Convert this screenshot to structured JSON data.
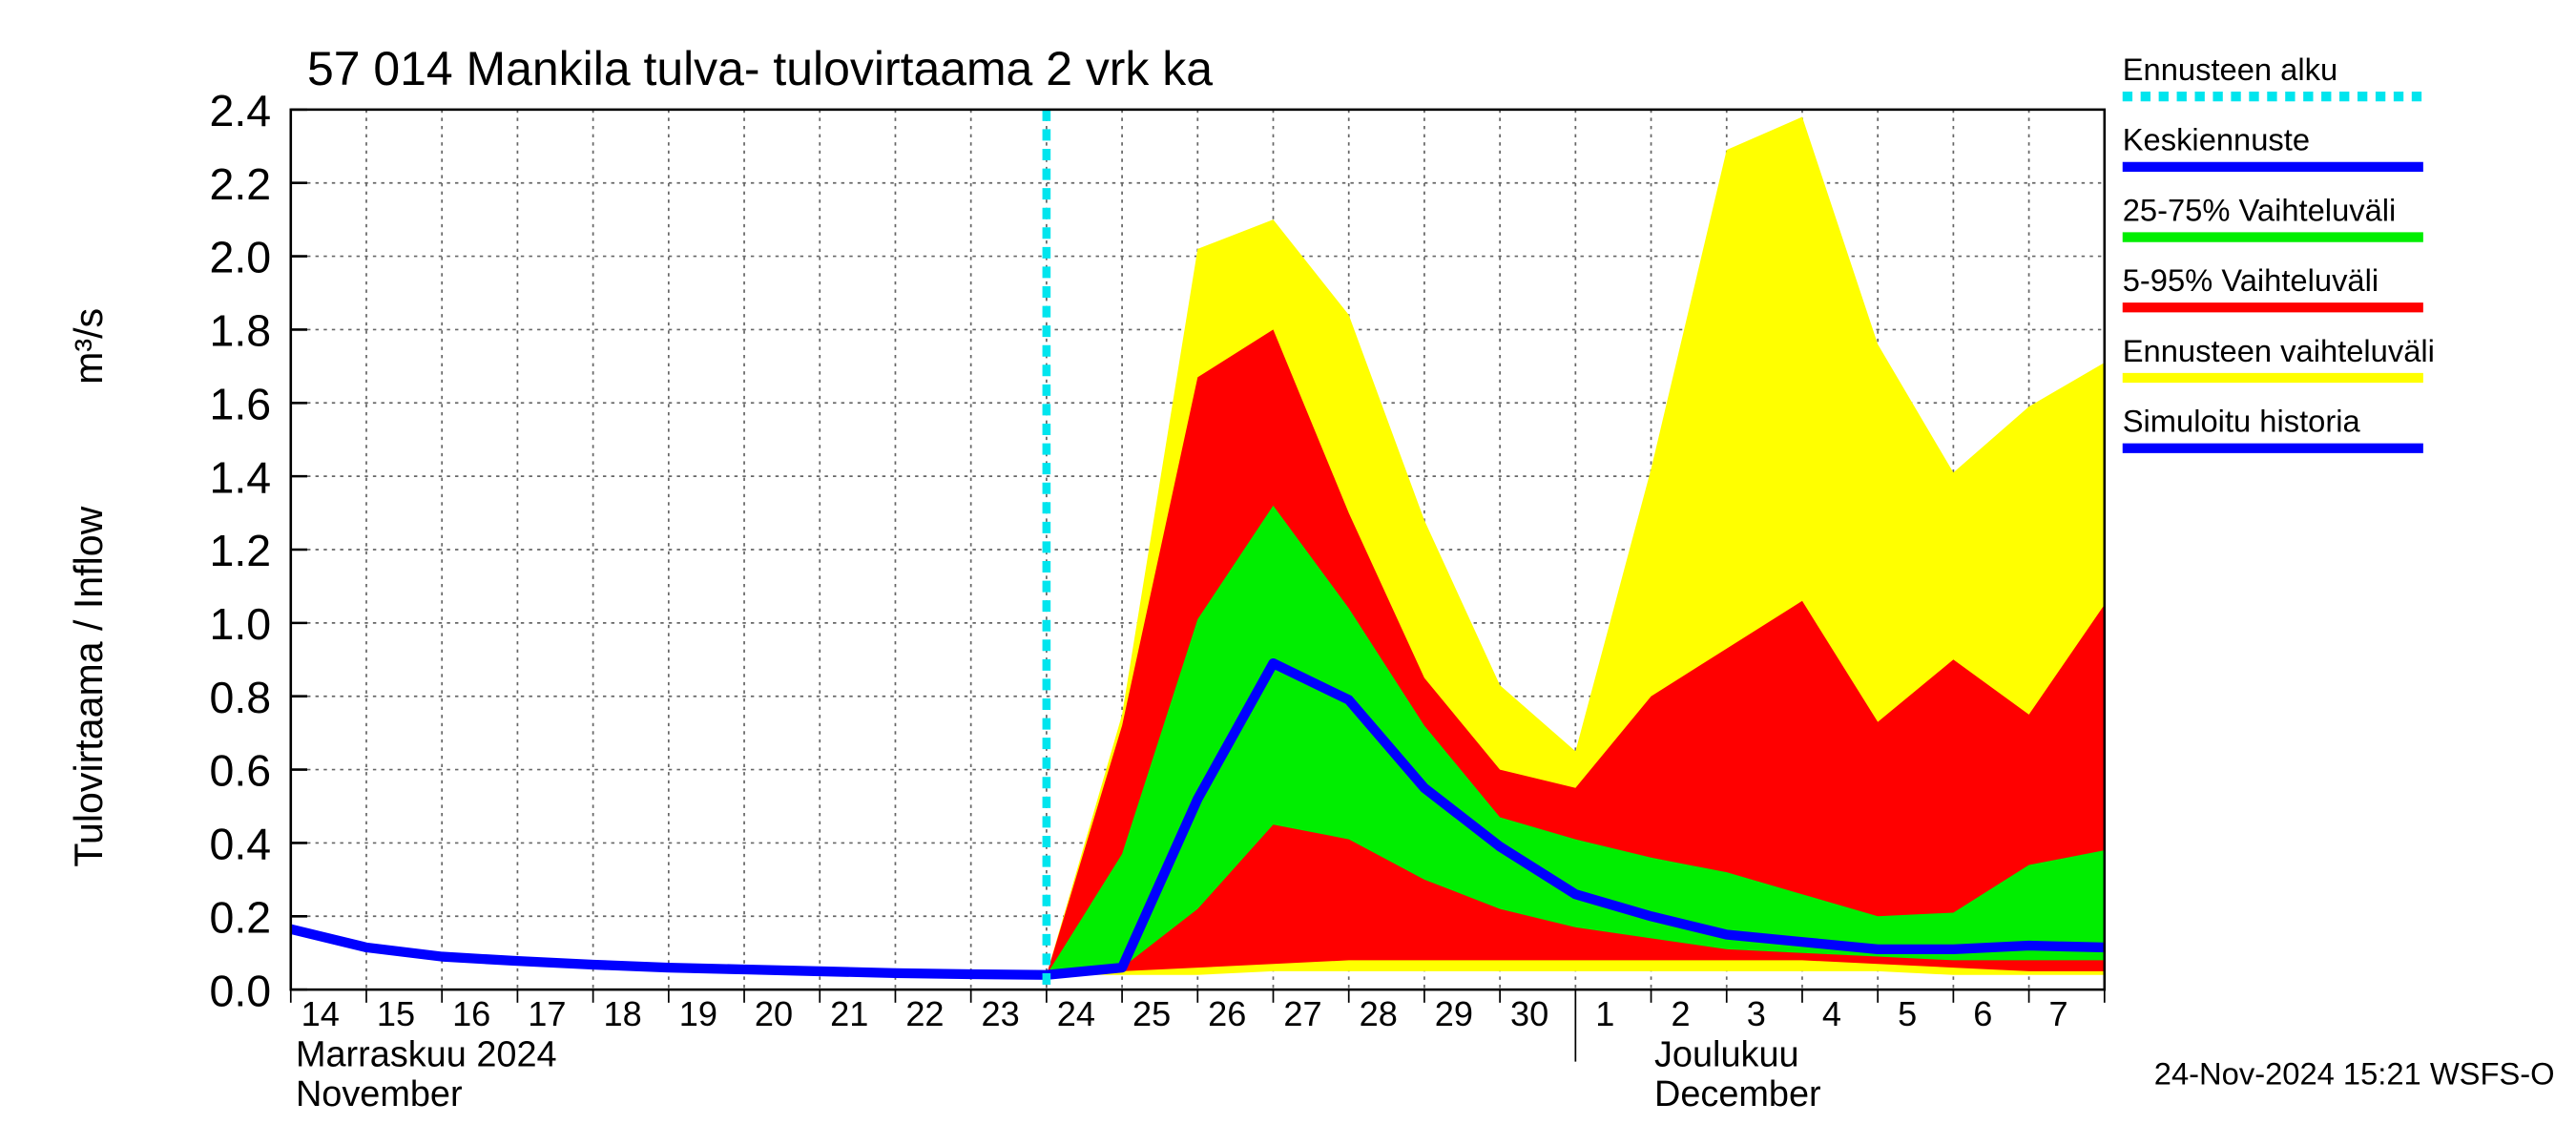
{
  "chart_data": {
    "type": "band-line",
    "title": "57 014 Mankila tulva- tulovirtaama 2 vrk ka",
    "y_label": "Tulovirtaama / Inflow",
    "y_unit": "m³/s",
    "months": [
      {
        "name": "Marraskuu 2024",
        "name_en": "November"
      },
      {
        "name": "Joulukuu",
        "name_en": "December"
      }
    ],
    "footer": "24-Nov-2024 15:21 WSFS-O",
    "categories": [
      "14",
      "15",
      "16",
      "17",
      "18",
      "19",
      "20",
      "21",
      "22",
      "23",
      "24",
      "25",
      "26",
      "27",
      "28",
      "29",
      "30",
      "1",
      "2",
      "3",
      "4",
      "5",
      "6",
      "7",
      null
    ],
    "ylim": [
      0,
      2.4
    ],
    "yticks": [
      {
        "value": 0,
        "label": "0.0"
      },
      {
        "value": 0.2,
        "label": "0.2"
      },
      {
        "value": 0.4,
        "label": "0.4"
      },
      {
        "value": 0.6,
        "label": "0.6"
      },
      {
        "value": 0.8,
        "label": "0.8"
      },
      {
        "value": 1.0,
        "label": "1.0"
      },
      {
        "value": 1.2,
        "label": "1.2"
      },
      {
        "value": 1.4,
        "label": "1.4"
      },
      {
        "value": 1.6,
        "label": "1.6"
      },
      {
        "value": 1.8,
        "label": "1.8"
      },
      {
        "value": 2.0,
        "label": "2.0"
      },
      {
        "value": 2.2,
        "label": "2.2"
      },
      {
        "value": 2.4,
        "label": "2.4"
      }
    ],
    "grid": true,
    "forecast_start": {
      "name": "Ennusteen alku",
      "color": "#00e5ee",
      "at": 10
    },
    "bands": [
      {
        "name": "Ennusteen vaihteluväli",
        "color": "#ffff00",
        "high": [
          null,
          null,
          null,
          null,
          null,
          null,
          null,
          null,
          null,
          null,
          0.04,
          0.75,
          2.02,
          2.1,
          1.84,
          1.28,
          0.83,
          0.65,
          1.42,
          2.29,
          2.38,
          1.76,
          1.41,
          1.59,
          1.71
        ],
        "low": [
          null,
          null,
          null,
          null,
          null,
          null,
          null,
          null,
          null,
          null,
          0.04,
          0.04,
          0.04,
          0.05,
          0.05,
          0.05,
          0.05,
          0.05,
          0.05,
          0.05,
          0.05,
          0.05,
          0.04,
          0.04,
          0.04
        ]
      },
      {
        "name": "5-95% Vaihteluväli",
        "color": "#ff0000",
        "high": [
          null,
          null,
          null,
          null,
          null,
          null,
          null,
          null,
          null,
          null,
          0.04,
          0.72,
          1.67,
          1.8,
          1.3,
          0.85,
          0.6,
          0.55,
          0.8,
          0.93,
          1.06,
          0.73,
          0.9,
          0.75,
          1.05
        ],
        "low": [
          null,
          null,
          null,
          null,
          null,
          null,
          null,
          null,
          null,
          null,
          0.04,
          0.05,
          0.06,
          0.07,
          0.08,
          0.08,
          0.08,
          0.08,
          0.08,
          0.08,
          0.08,
          0.07,
          0.06,
          0.05,
          0.05
        ]
      },
      {
        "name": "25-75% Vaihteluväli",
        "color": "#00ee00",
        "high": [
          null,
          null,
          null,
          null,
          null,
          null,
          null,
          null,
          null,
          null,
          0.04,
          0.37,
          1.01,
          1.32,
          1.04,
          0.72,
          0.47,
          0.41,
          0.36,
          0.32,
          0.26,
          0.2,
          0.21,
          0.34,
          0.38
        ],
        "low": [
          null,
          null,
          null,
          null,
          null,
          null,
          null,
          null,
          null,
          null,
          0.04,
          0.06,
          0.22,
          0.45,
          0.41,
          0.3,
          0.22,
          0.17,
          0.14,
          0.11,
          0.1,
          0.09,
          0.08,
          0.08,
          0.08
        ]
      }
    ],
    "series": [
      {
        "name": "Keskiennuste",
        "color": "#0000ff",
        "values": [
          null,
          null,
          null,
          null,
          null,
          null,
          null,
          null,
          null,
          null,
          0.04,
          0.06,
          0.52,
          0.89,
          0.79,
          0.55,
          0.39,
          0.26,
          0.2,
          0.15,
          0.13,
          0.11,
          0.11,
          0.12,
          0.115
        ]
      },
      {
        "name": "Simuloitu historia",
        "color": "#0000ff",
        "values": [
          0.165,
          0.115,
          0.09,
          0.078,
          0.068,
          0.06,
          0.055,
          0.05,
          0.045,
          0.042,
          0.04,
          null,
          null,
          null,
          null,
          null,
          null,
          null,
          null,
          null,
          null,
          null,
          null,
          null,
          null
        ]
      }
    ]
  }
}
